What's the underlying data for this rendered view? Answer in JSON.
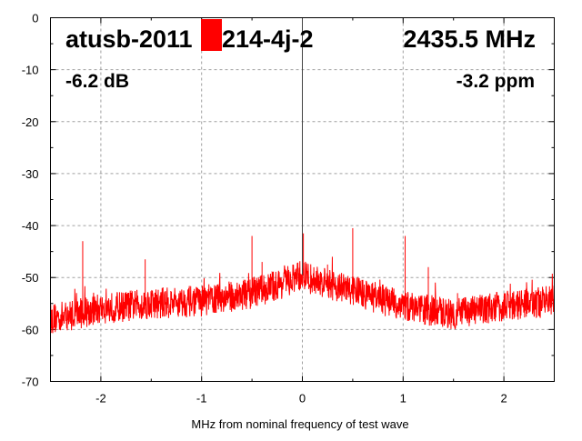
{
  "chart_data": {
    "type": "line",
    "title_left": "atusb-2011",
    "title_right_part": "214-4j-2",
    "frequency": "2435.5 MHz",
    "level": "-6.2 dB",
    "offset": "-3.2 ppm",
    "xlabel": "MHz from nominal frequency of test wave",
    "ylabel": "",
    "xlim": [
      -2.5,
      2.5
    ],
    "ylim": [
      -70,
      0
    ],
    "xticks": [
      "-2",
      "-1",
      "0",
      "1",
      "2"
    ],
    "xtick_values": [
      -2,
      -1,
      0,
      1,
      2
    ],
    "yticks": [
      "0",
      "-10",
      "-20",
      "-30",
      "-40",
      "-50",
      "-60",
      "-70"
    ],
    "ytick_values": [
      0,
      -10,
      -20,
      -30,
      -40,
      -50,
      -60,
      -70
    ],
    "grid": true,
    "series_color": "#ff0000",
    "noise_floor": {
      "x": [
        -2.5,
        -2,
        -1.5,
        -1,
        -0.5,
        -0.1,
        0,
        0.1,
        0.5,
        1,
        1.5,
        2,
        2.5
      ],
      "y": [
        -58,
        -56,
        -55,
        -54.5,
        -53,
        -50.5,
        -49.5,
        -50.5,
        -52.5,
        -55.5,
        -57,
        -55.5,
        -54.5
      ]
    },
    "noise_amplitude_db": 3,
    "spikes": [
      {
        "x": -2.18,
        "y": -43
      },
      {
        "x": -1.56,
        "y": -46.5
      },
      {
        "x": -0.5,
        "y": -42
      },
      {
        "x": -0.4,
        "y": -47
      },
      {
        "x": 0.0,
        "y": 0
      },
      {
        "x": 0.01,
        "y": -41.5
      },
      {
        "x": 0.25,
        "y": -47.5
      },
      {
        "x": 0.5,
        "y": -40.5
      },
      {
        "x": 1.02,
        "y": -42
      },
      {
        "x": 1.25,
        "y": -48
      },
      {
        "x": 1.54,
        "y": -53
      }
    ],
    "redaction_color": "#ff0000"
  }
}
